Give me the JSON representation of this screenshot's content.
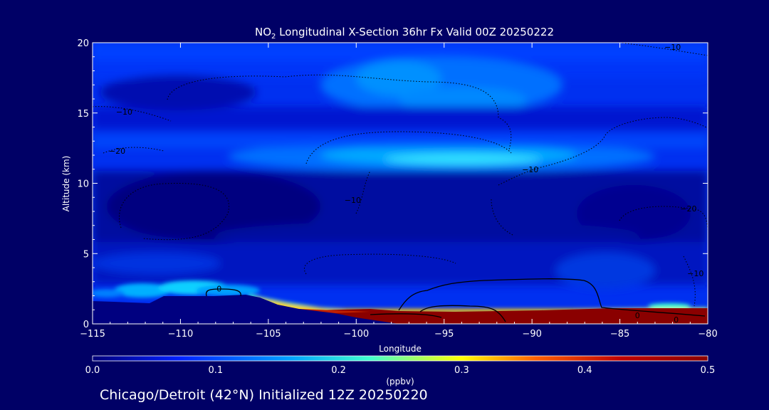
{
  "chart_data": {
    "type": "heatmap",
    "title": "NO2 Longitudinal X-Section 36hr  Fx Valid 00Z 20250222",
    "title_main": "NO",
    "title_sub": "2",
    "title_rest": " Longitudinal X-Section 36hr  Fx Valid 00Z 20250222",
    "xlabel": "Longitude",
    "ylabel": "Altitude (km)",
    "xlim": [
      -115,
      -80
    ],
    "ylim": [
      0,
      20
    ],
    "x_ticks": [
      -115,
      -110,
      -105,
      -100,
      -95,
      -90,
      -85,
      -80
    ],
    "y_ticks": [
      0,
      5,
      10,
      15,
      20
    ],
    "colorbar": {
      "label": "(ppbv)",
      "range": [
        0.0,
        0.5
      ],
      "ticks": [
        "0.0",
        "0.1",
        "0.2",
        "0.3",
        "0.4",
        "0.5"
      ],
      "colormap": [
        "#00007a",
        "#0020ff",
        "#00a0ff",
        "#40ffd0",
        "#ffff00",
        "#ff6000",
        "#c00000",
        "#8a0000"
      ]
    },
    "contour_labels": [
      {
        "text": "-10",
        "x": -82,
        "y": 19.7
      },
      {
        "text": "-10",
        "x": -113.2,
        "y": 15.1
      },
      {
        "text": "-20",
        "x": -113.6,
        "y": 12.3
      },
      {
        "text": "-10",
        "x": -90.1,
        "y": 11.0
      },
      {
        "text": "-10",
        "x": -100.2,
        "y": 8.8
      },
      {
        "text": "-20",
        "x": -81.1,
        "y": 8.2
      },
      {
        "text": "-10",
        "x": -80.7,
        "y": 3.6
      },
      {
        "text": "0",
        "x": -107.8,
        "y": 2.5
      },
      {
        "text": "0",
        "x": -84,
        "y": 0.6
      },
      {
        "text": "0",
        "x": -81.8,
        "y": 0.3
      }
    ],
    "features": {
      "high_concentration_near_surface": {
        "x_range": [
          -102,
          -80
        ],
        "value_ppbv": 0.5
      },
      "upper_level_band": {
        "altitude_km": 12,
        "x_range": [
          -103,
          -84
        ],
        "value_ppbv": 0.15
      }
    },
    "footer": "Chicago/Detroit (42°N) Initialized 12Z 20250220"
  },
  "colors": {
    "background": "#000066",
    "text": "#ffffff",
    "terrain": "#000080"
  }
}
